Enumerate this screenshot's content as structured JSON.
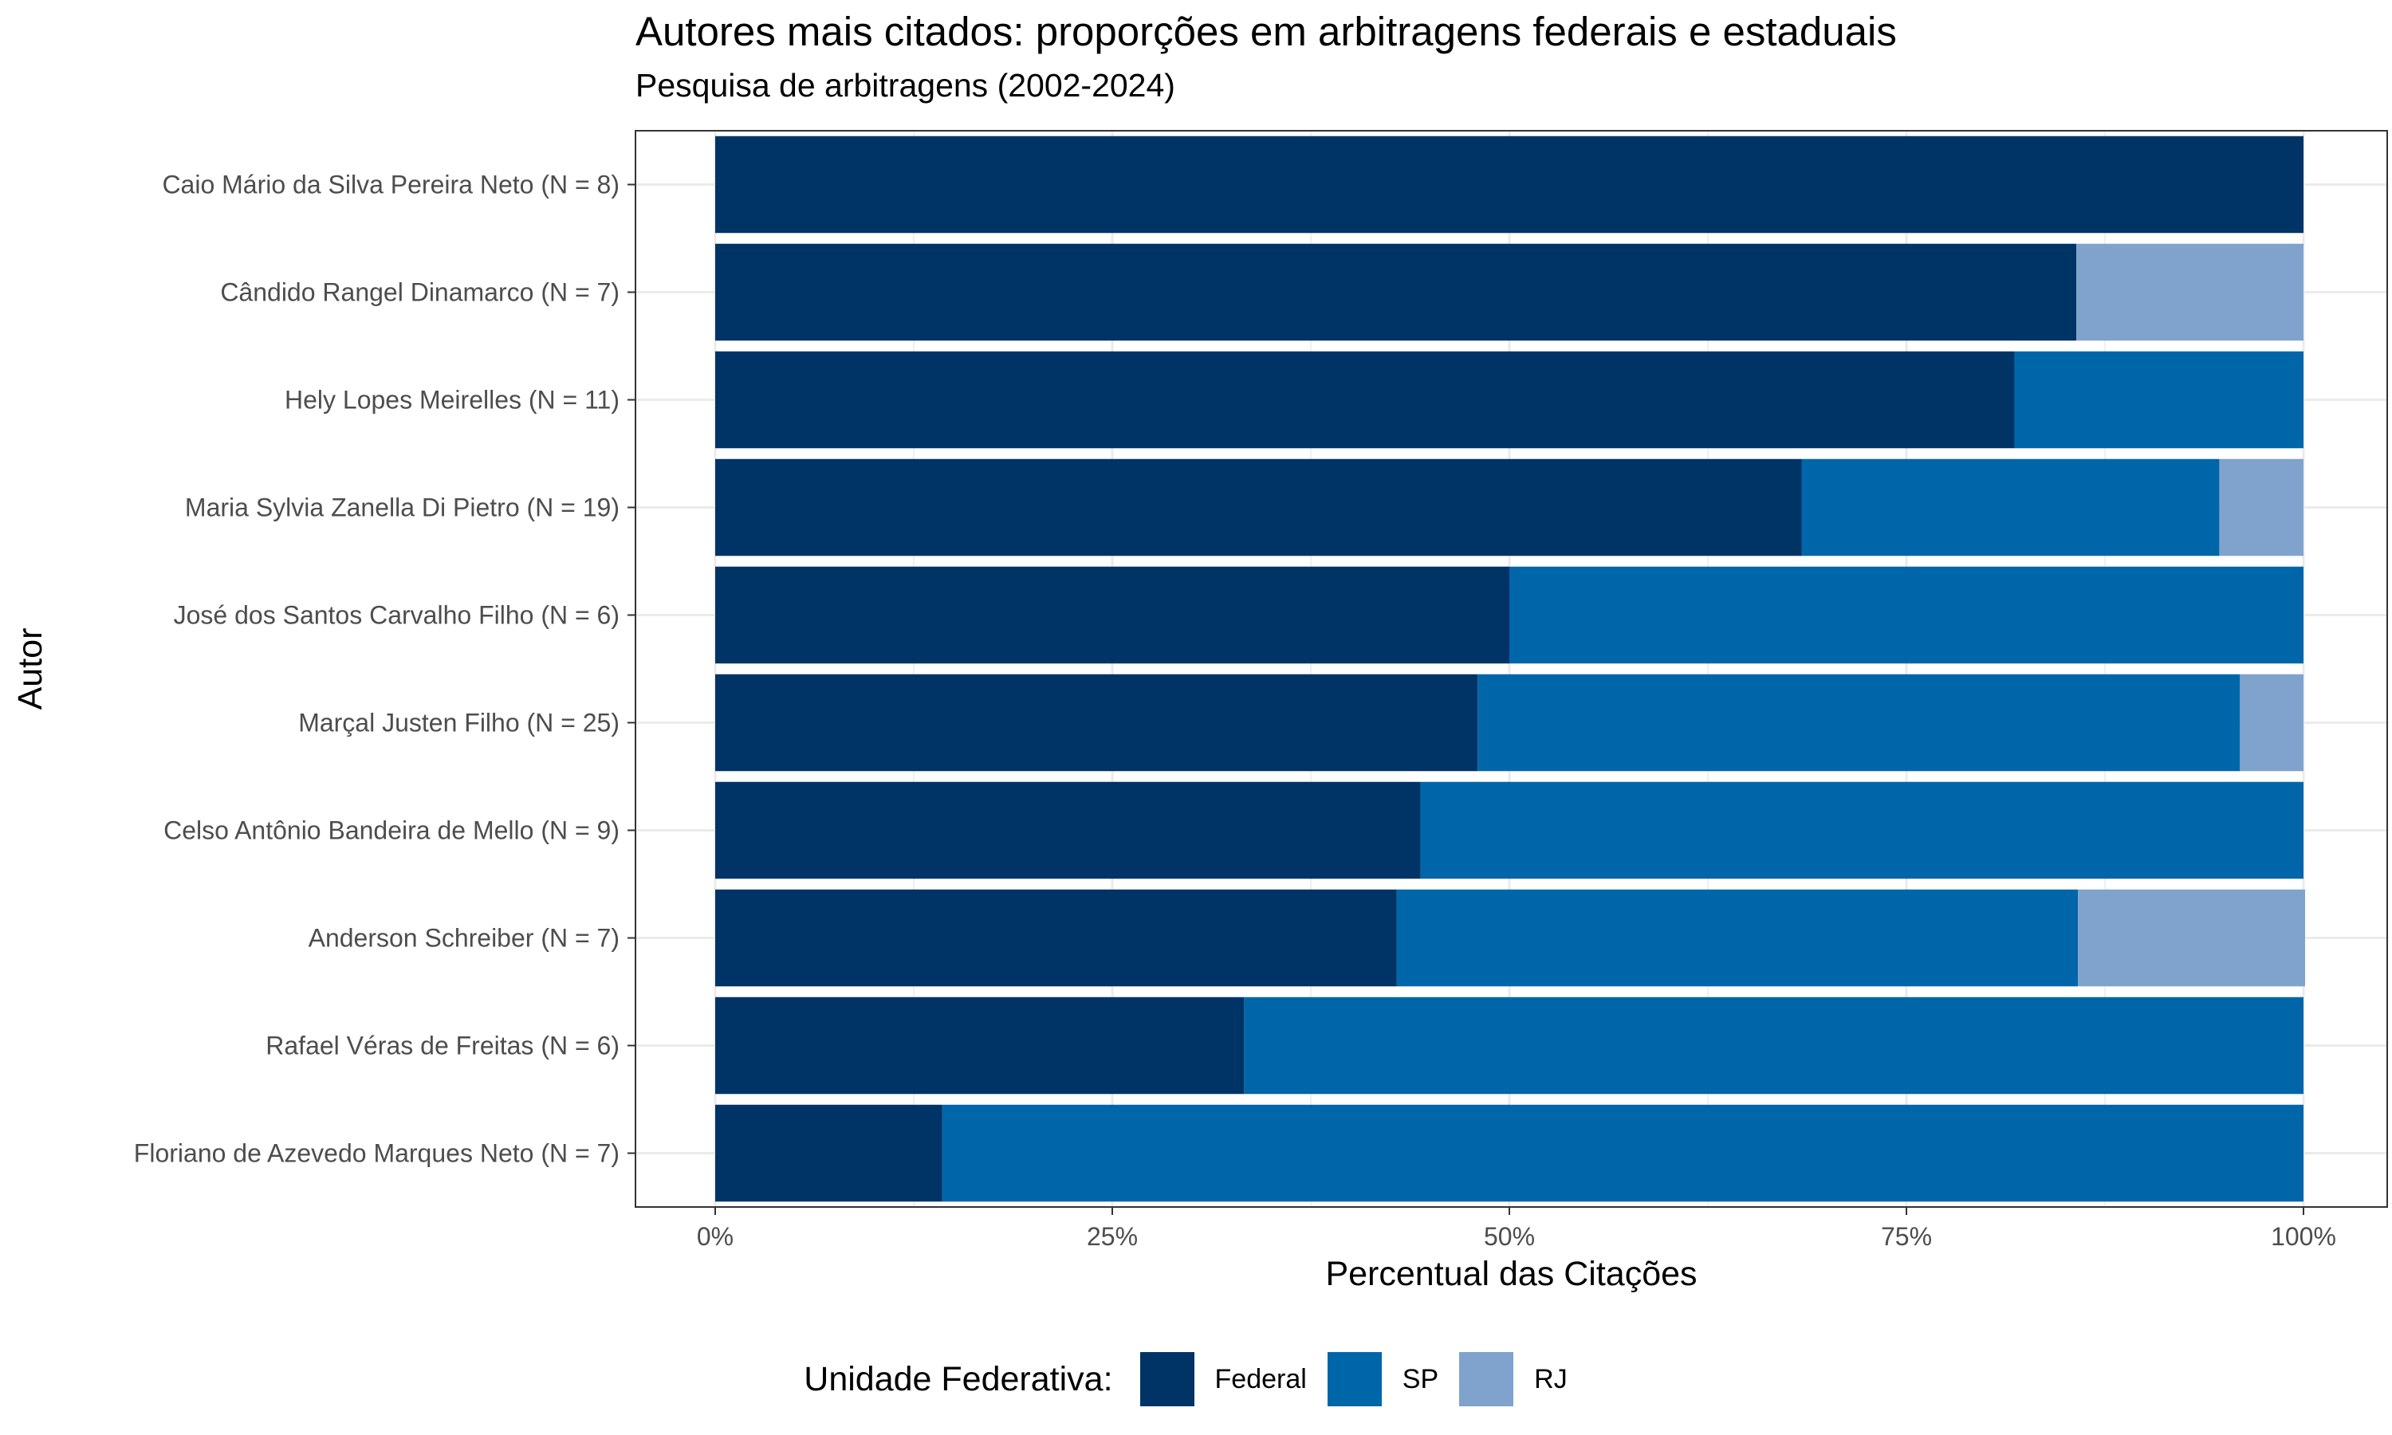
{
  "title": "Autores mais citados: proporções em arbitragens federais e estaduais",
  "subtitle": "Pesquisa de arbitragens (2002-2024)",
  "chart_data": {
    "type": "bar",
    "orientation": "horizontal",
    "stacked": true,
    "title": "Autores mais citados: proporções em arbitragens federais e estaduais",
    "subtitle": "Pesquisa de arbitragens (2002-2024)",
    "xlabel": "Percentual das Citações",
    "ylabel": "Autor",
    "xlim": [
      0,
      100
    ],
    "x_ticks": [
      "0%",
      "25%",
      "50%",
      "75%",
      "100%"
    ],
    "categories": [
      "Caio Mário da Silva Pereira Neto (N = 8)",
      "Cândido Rangel Dinamarco (N = 7)",
      "Hely Lopes Meirelles (N = 11)",
      "Maria Sylvia Zanella Di Pietro (N = 19)",
      "José dos Santos Carvalho Filho (N = 6)",
      "Marçal Justen Filho (N = 25)",
      "Celso Antônio Bandeira de Mello (N = 9)",
      "Anderson Schreiber (N = 7)",
      "Rafael Véras de Freitas (N = 6)",
      "Floriano de Azevedo Marques Neto (N = 7)"
    ],
    "series": [
      {
        "name": "Federal",
        "color": "#003366",
        "values": [
          100,
          85.7,
          81.8,
          68.4,
          50.0,
          48.0,
          44.4,
          42.9,
          33.3,
          14.3
        ]
      },
      {
        "name": "SP",
        "color": "#0066AA",
        "values": [
          0,
          0,
          18.2,
          26.3,
          50.0,
          48.0,
          55.6,
          42.9,
          66.7,
          85.7
        ]
      },
      {
        "name": "RJ",
        "color": "#7FA3CC",
        "values": [
          0,
          14.3,
          0,
          5.3,
          0,
          4.0,
          0,
          14.3,
          0,
          0
        ]
      }
    ],
    "grid": true,
    "legend_position": "bottom",
    "legend_title": "Unidade Federativa:"
  }
}
